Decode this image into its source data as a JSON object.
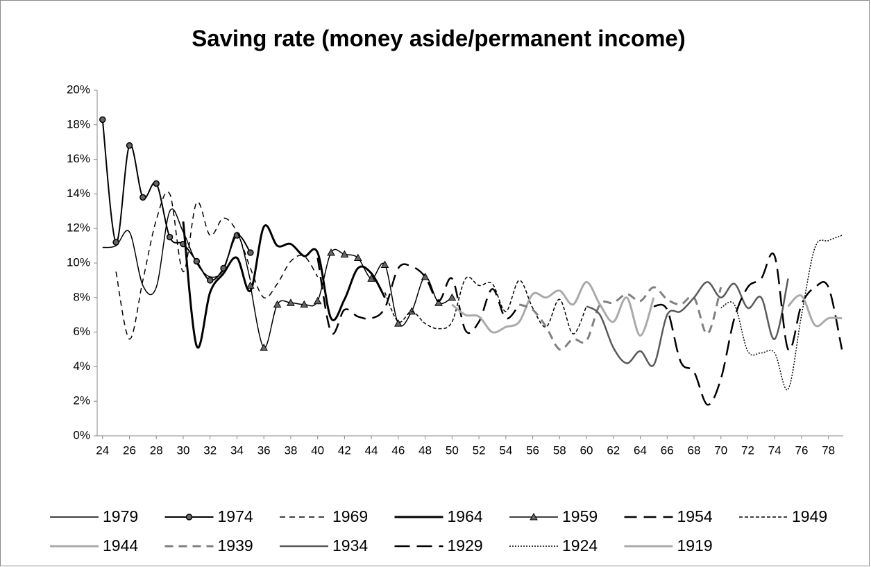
{
  "chart_data": {
    "type": "line",
    "title": "Saving rate (money aside/permanent income)",
    "xlim": [
      23.6,
      79.1
    ],
    "xticks": [
      24,
      26,
      28,
      30,
      32,
      34,
      36,
      38,
      40,
      42,
      44,
      46,
      48,
      50,
      52,
      54,
      56,
      58,
      60,
      62,
      64,
      66,
      68,
      70,
      72,
      74,
      76,
      78
    ],
    "ylim": [
      0,
      20
    ],
    "yticks": [
      {
        "value": 0,
        "label": "0%"
      },
      {
        "value": 2,
        "label": "2%"
      },
      {
        "value": 4,
        "label": "4%"
      },
      {
        "value": 6,
        "label": "6%"
      },
      {
        "value": 8,
        "label": "8%"
      },
      {
        "value": 10,
        "label": "10%"
      },
      {
        "value": 12,
        "label": "12%"
      },
      {
        "value": 14,
        "label": "14%"
      },
      {
        "value": 16,
        "label": "16%"
      },
      {
        "value": 18,
        "label": "18%"
      },
      {
        "value": 20,
        "label": "20%"
      }
    ],
    "legend": "bottom",
    "series": [
      {
        "name": "1979",
        "color": "#000000",
        "width": 1.5,
        "dash": "none",
        "x": [
          24,
          25,
          26,
          27,
          28,
          29,
          30,
          31,
          32,
          33,
          34,
          35
        ],
        "values": [
          10.9,
          11.0,
          11.8,
          8.7,
          8.6,
          13.0,
          11.8,
          10.0,
          9.2,
          9.6,
          11.7,
          9.0
        ]
      },
      {
        "name": "1974",
        "color": "#000000",
        "width": 2,
        "dash": "none",
        "marker": "circle",
        "x": [
          24,
          25,
          26,
          27,
          28,
          29,
          30,
          31,
          32,
          33,
          34,
          35
        ],
        "values": [
          18.3,
          11.2,
          16.8,
          13.8,
          14.6,
          11.5,
          11.1,
          10.1,
          9.0,
          9.7,
          11.6,
          10.6
        ]
      },
      {
        "name": "1969",
        "color": "#000000",
        "width": 1.5,
        "dash": "8,6",
        "x": [
          25,
          26,
          27,
          28,
          29,
          30,
          31,
          32,
          33,
          34,
          35,
          36,
          37,
          38,
          39,
          40
        ],
        "values": [
          9.5,
          5.6,
          9.0,
          12.5,
          14.0,
          9.5,
          13.5,
          11.6,
          12.6,
          11.8,
          9.7,
          8.0,
          8.8,
          10.1,
          10.4,
          9.2
        ]
      },
      {
        "name": "1964",
        "color": "#000000",
        "width": 3,
        "dash": "none",
        "x": [
          30,
          31,
          32,
          33,
          34,
          35,
          36,
          37,
          38,
          39,
          40,
          41,
          42,
          43,
          44,
          45
        ],
        "values": [
          12.4,
          5.2,
          8.3,
          9.4,
          10.3,
          8.4,
          12.1,
          11.0,
          11.1,
          10.4,
          10.6,
          6.8,
          7.9,
          9.7,
          9.4,
          8.0
        ]
      },
      {
        "name": "1959",
        "color": "#000000",
        "width": 1.5,
        "dash": "none",
        "marker": "triangle",
        "x": [
          35,
          36,
          37,
          38,
          39,
          40,
          41,
          42,
          43,
          44,
          45,
          46,
          47,
          48,
          49,
          50
        ],
        "values": [
          8.7,
          5.1,
          7.6,
          7.7,
          7.6,
          7.8,
          10.6,
          10.5,
          10.3,
          9.1,
          9.9,
          6.5,
          7.2,
          9.2,
          7.7,
          8.0
        ]
      },
      {
        "name": "1954",
        "color": "#000000",
        "width": 2.5,
        "dash": "18,10",
        "x": [
          40,
          41,
          42,
          43,
          44,
          45,
          46,
          47,
          48,
          49,
          50,
          51,
          52,
          53,
          54,
          55
        ],
        "values": [
          10.3,
          6.0,
          7.3,
          6.9,
          6.8,
          7.4,
          9.7,
          9.8,
          9.2,
          7.8,
          9.1,
          6.1,
          6.6,
          8.5,
          6.8,
          7.6
        ]
      },
      {
        "name": "1949",
        "color": "#000000",
        "width": 1.5,
        "dash": "5,3",
        "x": [
          45,
          46,
          47,
          48,
          49,
          50,
          51,
          52,
          53,
          54,
          55,
          56,
          57,
          58,
          59,
          60
        ],
        "values": [
          8.3,
          6.6,
          7.2,
          6.5,
          6.2,
          6.6,
          9.1,
          8.7,
          8.8,
          7.2,
          9.0,
          7.4,
          6.3,
          7.9,
          5.9,
          7.5
        ]
      },
      {
        "name": "1944",
        "color": "#aaaaaa",
        "width": 3,
        "dash": "none",
        "x": [
          50,
          51,
          52,
          53,
          54,
          55,
          56,
          57,
          58,
          59,
          60,
          61,
          62,
          63,
          64,
          65
        ],
        "values": [
          7.6,
          7.0,
          6.9,
          6.0,
          6.3,
          6.6,
          8.2,
          8.0,
          8.4,
          7.6,
          8.9,
          7.6,
          6.6,
          8.0,
          5.8,
          8.0
        ]
      },
      {
        "name": "1939",
        "color": "#808080",
        "width": 3,
        "dash": "12,8",
        "x": [
          55,
          56,
          57,
          58,
          59,
          60,
          61,
          62,
          63,
          64,
          65,
          66,
          67,
          68,
          69,
          70
        ],
        "values": [
          7.6,
          7.3,
          6.3,
          5.0,
          5.6,
          5.5,
          7.6,
          7.7,
          8.2,
          7.8,
          8.6,
          7.9,
          7.6,
          8.0,
          5.9,
          8.6
        ]
      },
      {
        "name": "1934",
        "color": "#595959",
        "width": 2.5,
        "dash": "none",
        "x": [
          60,
          61,
          62,
          63,
          64,
          65,
          66,
          67,
          68,
          69,
          70,
          71,
          72,
          73,
          74,
          75
        ],
        "values": [
          7.5,
          7.0,
          5.1,
          4.2,
          4.9,
          4.1,
          7.0,
          7.2,
          8.0,
          8.9,
          8.0,
          8.8,
          7.4,
          8.0,
          5.6,
          9.1
        ]
      },
      {
        "name": "1929",
        "color": "#000000",
        "width": 2.5,
        "dash": "22,10",
        "x": [
          65,
          66,
          67,
          68,
          69,
          70,
          71,
          72,
          73,
          74,
          75,
          76,
          77,
          78,
          79
        ],
        "values": [
          7.5,
          7.3,
          4.3,
          3.7,
          1.8,
          3.3,
          6.8,
          8.6,
          9.1,
          10.4,
          5.0,
          7.6,
          8.6,
          8.6,
          5.0
        ]
      },
      {
        "name": "1924",
        "color": "#000000",
        "width": 1.5,
        "dash": "2,2",
        "x": [
          70,
          71,
          72,
          73,
          74,
          75,
          76,
          77,
          78,
          79
        ],
        "values": [
          7.4,
          7.6,
          4.9,
          4.8,
          4.8,
          2.7,
          7.0,
          10.9,
          11.3,
          11.6
        ]
      },
      {
        "name": "1919",
        "color": "#aaaaaa",
        "width": 3,
        "dash": "none",
        "x": [
          75,
          76,
          77,
          78,
          79
        ],
        "values": [
          7.5,
          8.1,
          6.4,
          6.8,
          6.8
        ]
      }
    ]
  }
}
